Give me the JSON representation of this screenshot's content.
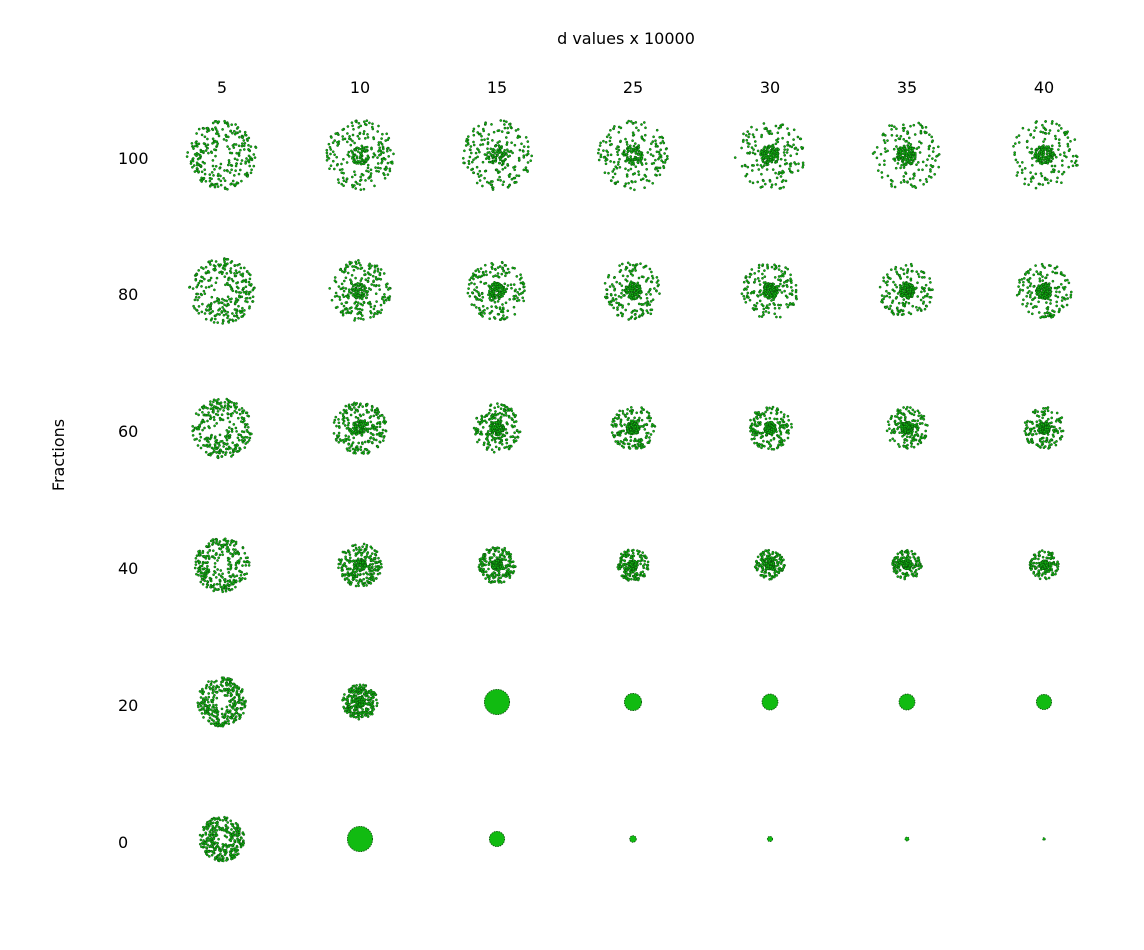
{
  "chart_data": {
    "type": "scatter",
    "title": "d  values x 10000",
    "xlabel": "",
    "ylabel": "Fractions",
    "column_labels": [
      "5",
      "10",
      "15",
      "25",
      "30",
      "35",
      "40"
    ],
    "row_labels": [
      "100",
      "80",
      "60",
      "40",
      "20",
      "0"
    ],
    "point_color": "#11bb11",
    "point_edge_color": "#0a4d0a",
    "grid": false,
    "legend": "none",
    "cells": [
      [
        {
          "radius": 1.0,
          "core": 0.0
        },
        {
          "radius": 1.0,
          "core": 0.22
        },
        {
          "radius": 1.0,
          "core": 0.32
        },
        {
          "radius": 1.0,
          "core": 0.38
        },
        {
          "radius": 1.0,
          "core": 0.42
        },
        {
          "radius": 1.0,
          "core": 0.44
        },
        {
          "radius": 1.0,
          "core": 0.46
        }
      ],
      [
        {
          "radius": 0.94,
          "core": 0.0
        },
        {
          "radius": 0.88,
          "core": 0.24
        },
        {
          "radius": 0.84,
          "core": 0.34
        },
        {
          "radius": 0.83,
          "core": 0.4
        },
        {
          "radius": 0.81,
          "core": 0.44
        },
        {
          "radius": 0.79,
          "core": 0.46
        },
        {
          "radius": 0.79,
          "core": 0.48
        }
      ],
      [
        {
          "radius": 0.86,
          "core": 0.0
        },
        {
          "radius": 0.76,
          "core": 0.26
        },
        {
          "radius": 0.7,
          "core": 0.38
        },
        {
          "radius": 0.64,
          "core": 0.44
        },
        {
          "radius": 0.62,
          "core": 0.48
        },
        {
          "radius": 0.6,
          "core": 0.5
        },
        {
          "radius": 0.6,
          "core": 0.52
        }
      ],
      [
        {
          "radius": 0.78,
          "core": 0.0
        },
        {
          "radius": 0.62,
          "core": 0.3
        },
        {
          "radius": 0.53,
          "core": 0.45
        },
        {
          "radius": 0.46,
          "core": 0.55
        },
        {
          "radius": 0.43,
          "core": 0.58
        },
        {
          "radius": 0.43,
          "core": 0.6
        },
        {
          "radius": 0.42,
          "core": 0.62
        }
      ],
      [
        {
          "radius": 0.7,
          "core": 0.0
        },
        {
          "radius": 0.5,
          "core": 0.3
        },
        {
          "radius": 0.38,
          "core": 0.5
        },
        {
          "radius": 0.26,
          "core": 1.0
        },
        {
          "radius": 0.24,
          "core": 1.0
        },
        {
          "radius": 0.24,
          "core": 1.0
        },
        {
          "radius": 0.23,
          "core": 1.0
        }
      ],
      [
        {
          "radius": 0.64,
          "core": 0.0
        },
        {
          "radius": 0.38,
          "core": 0.3
        },
        {
          "radius": 0.23,
          "core": 0.6
        },
        {
          "radius": 0.1,
          "core": 1.0
        },
        {
          "radius": 0.08,
          "core": 1.0
        },
        {
          "radius": 0.06,
          "core": 1.0
        },
        {
          "radius": 0.04,
          "core": 1.0
        }
      ]
    ]
  }
}
